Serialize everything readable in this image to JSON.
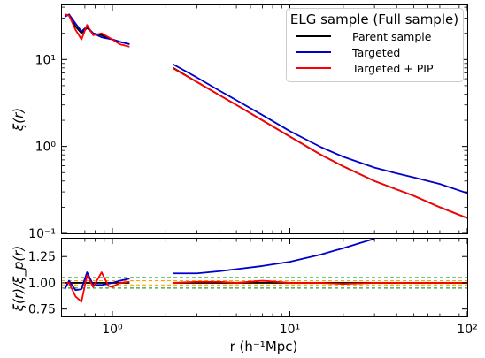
{
  "chart_data": [
    {
      "type": "line",
      "panel": "top",
      "xscale": "log",
      "yscale": "log",
      "xlim": [
        0.52,
        100
      ],
      "ylim": [
        0.1,
        42
      ],
      "ylabel": "ξ(r)",
      "yticks": [
        {
          "value": 0.1,
          "label": "10⁻¹"
        },
        {
          "value": 1,
          "label": "10⁰"
        },
        {
          "value": 10,
          "label": "10¹"
        }
      ],
      "grid": false,
      "legend": {
        "title": "ELG sample (Full sample)",
        "placement": "top-right",
        "entries": [
          "Parent sample",
          "Targeted",
          "Targeted + PIP"
        ]
      },
      "series": [
        {
          "name": "Parent sample",
          "color": "#000000",
          "segments": [
            [
              [
                0.54,
                33
              ],
              [
                0.57,
                32
              ],
              [
                0.62,
                24
              ],
              [
                0.67,
                20
              ],
              [
                0.72,
                23
              ],
              [
                0.78,
                20
              ],
              [
                0.87,
                19
              ],
              [
                1.0,
                17
              ],
              [
                1.1,
                16
              ],
              [
                1.25,
                15
              ]
            ],
            [
              [
                2.2,
                8.0
              ],
              [
                3.0,
                5.5
              ],
              [
                4.0,
                3.9
              ],
              [
                5.0,
                3.0
              ],
              [
                7.0,
                2.0
              ],
              [
                10.0,
                1.3
              ],
              [
                15.0,
                0.8
              ],
              [
                20.0,
                0.59
              ],
              [
                30.0,
                0.4
              ],
              [
                40.0,
                0.32
              ],
              [
                50.0,
                0.27
              ],
              [
                70.0,
                0.2
              ],
              [
                100.0,
                0.15
              ]
            ]
          ]
        },
        {
          "name": "Targeted",
          "color": "#0000cc",
          "segments": [
            [
              [
                0.54,
                31
              ],
              [
                0.57,
                33
              ],
              [
                0.62,
                26
              ],
              [
                0.67,
                21
              ],
              [
                0.72,
                24
              ],
              [
                0.78,
                20
              ],
              [
                0.87,
                18
              ],
              [
                1.0,
                17
              ],
              [
                1.1,
                16
              ],
              [
                1.25,
                15
              ]
            ],
            [
              [
                2.2,
                8.8
              ],
              [
                3.0,
                6.2
              ],
              [
                4.0,
                4.4
              ],
              [
                5.0,
                3.4
              ],
              [
                7.0,
                2.3
              ],
              [
                10.0,
                1.5
              ],
              [
                15.0,
                0.98
              ],
              [
                20.0,
                0.76
              ],
              [
                30.0,
                0.57
              ],
              [
                40.0,
                0.49
              ],
              [
                50.0,
                0.44
              ],
              [
                70.0,
                0.37
              ],
              [
                100.0,
                0.29
              ]
            ]
          ]
        },
        {
          "name": "Targeted + PIP",
          "color": "#ff0000",
          "segments": [
            [
              [
                0.54,
                33
              ],
              [
                0.57,
                32
              ],
              [
                0.62,
                22
              ],
              [
                0.67,
                17
              ],
              [
                0.72,
                25
              ],
              [
                0.78,
                19
              ],
              [
                0.87,
                20
              ],
              [
                1.0,
                17
              ],
              [
                1.1,
                15
              ],
              [
                1.25,
                14
              ]
            ],
            [
              [
                2.2,
                7.9
              ],
              [
                3.0,
                5.5
              ],
              [
                4.0,
                3.9
              ],
              [
                5.0,
                3.0
              ],
              [
                7.0,
                2.0
              ],
              [
                10.0,
                1.3
              ],
              [
                15.0,
                0.8
              ],
              [
                20.0,
                0.59
              ],
              [
                30.0,
                0.4
              ],
              [
                40.0,
                0.32
              ],
              [
                50.0,
                0.27
              ],
              [
                70.0,
                0.2
              ],
              [
                100.0,
                0.15
              ]
            ]
          ]
        }
      ]
    },
    {
      "type": "line",
      "panel": "bottom",
      "xscale": "log",
      "yscale": "linear",
      "xlim": [
        0.52,
        100
      ],
      "ylim": [
        0.68,
        1.42
      ],
      "xlabel": "r (h⁻¹Mpc)",
      "ylabel": "ξ(r)/ξ_p(r)",
      "xticks": [
        {
          "value": 1,
          "label": "10⁰"
        },
        {
          "value": 10,
          "label": "10¹"
        },
        {
          "value": 100,
          "label": "10²"
        }
      ],
      "yticks": [
        0.75,
        1.0,
        1.25
      ],
      "ytick_labels": [
        "0.75",
        "1.00",
        "1.25"
      ],
      "reference_lines": [
        {
          "y": 0.95,
          "color": "#2ca02c",
          "style": "dashed"
        },
        {
          "y": 0.98,
          "color": "#ffa500",
          "style": "dashed"
        },
        {
          "y": 1.02,
          "color": "#ffa500",
          "style": "dashed"
        },
        {
          "y": 1.05,
          "color": "#2ca02c",
          "style": "dashed"
        }
      ],
      "series": [
        {
          "name": "Parent sample",
          "color": "#000000",
          "segments": [
            [
              [
                0.54,
                1.0
              ],
              [
                1.25,
                1.0
              ]
            ],
            [
              [
                2.2,
                1.0
              ],
              [
                100,
                1.0
              ]
            ]
          ]
        },
        {
          "name": "Targeted",
          "color": "#0000cc",
          "segments": [
            [
              [
                0.54,
                0.94
              ],
              [
                0.57,
                1.02
              ],
              [
                0.62,
                0.93
              ],
              [
                0.67,
                0.94
              ],
              [
                0.72,
                1.1
              ],
              [
                0.78,
                0.98
              ],
              [
                0.87,
                0.98
              ],
              [
                1.0,
                1.0
              ],
              [
                1.1,
                1.02
              ],
              [
                1.25,
                1.04
              ]
            ],
            [
              [
                2.2,
                1.09
              ],
              [
                3.0,
                1.09
              ],
              [
                4.0,
                1.11
              ],
              [
                5.0,
                1.13
              ],
              [
                7.0,
                1.16
              ],
              [
                10.0,
                1.2
              ],
              [
                15.0,
                1.27
              ],
              [
                20.0,
                1.33
              ],
              [
                25.0,
                1.38
              ],
              [
                30.0,
                1.42
              ]
            ]
          ]
        },
        {
          "name": "Targeted + PIP",
          "color": "#ff0000",
          "segments": [
            [
              [
                0.54,
                1.0
              ],
              [
                0.57,
                1.0
              ],
              [
                0.62,
                0.87
              ],
              [
                0.67,
                0.82
              ],
              [
                0.72,
                1.07
              ],
              [
                0.78,
                0.96
              ],
              [
                0.87,
                1.1
              ],
              [
                0.95,
                0.97
              ],
              [
                1.0,
                0.96
              ],
              [
                1.1,
                1.0
              ],
              [
                1.25,
                1.01
              ]
            ],
            [
              [
                2.2,
                1.0
              ],
              [
                3.0,
                1.01
              ],
              [
                4.0,
                1.01
              ],
              [
                5.0,
                1.0
              ],
              [
                7.0,
                1.02
              ],
              [
                10.0,
                1.0
              ],
              [
                15.0,
                1.0
              ],
              [
                20.0,
                0.99
              ],
              [
                30.0,
                1.0
              ],
              [
                50.0,
                1.0
              ],
              [
                70.0,
                1.0
              ],
              [
                100.0,
                1.0
              ]
            ]
          ]
        }
      ]
    }
  ]
}
